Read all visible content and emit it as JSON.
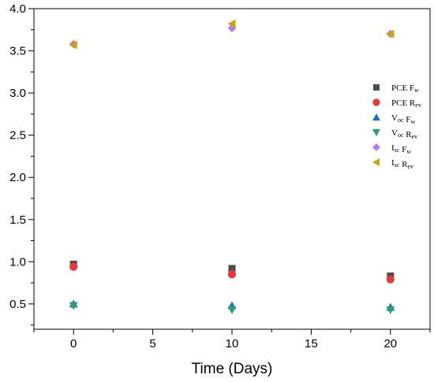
{
  "chart_data": {
    "type": "scatter",
    "title": "",
    "xlabel": "Time (Days)",
    "ylabel": "",
    "xlim": [
      -2.5,
      22.5
    ],
    "ylim": [
      0.2,
      4.0
    ],
    "x_ticks": [
      0,
      5,
      10,
      15,
      20
    ],
    "y_ticks": [
      0.5,
      1.0,
      1.5,
      2.0,
      2.5,
      3.0,
      3.5,
      4.0
    ],
    "x_tick_labels": [
      "0",
      "5",
      "10",
      "15",
      "20"
    ],
    "y_tick_labels": [
      "0.5",
      "1.0",
      "1.5",
      "2.0",
      "2.5",
      "3.0",
      "3.5",
      "4.0"
    ],
    "grid": false,
    "legend_position": "right",
    "series": [
      {
        "name": "PCE Fw",
        "label_main": "PCE F",
        "label_sub": "w",
        "marker": "square",
        "color": "#4d4d4d",
        "x": [
          0,
          10,
          20
        ],
        "y": [
          0.97,
          0.92,
          0.83
        ]
      },
      {
        "name": "PCE Rev",
        "label_main": "PCE R",
        "label_sub": "ev",
        "marker": "circle",
        "color": "#e8383d",
        "x": [
          0,
          10,
          20
        ],
        "y": [
          0.94,
          0.85,
          0.79
        ]
      },
      {
        "name": "Voc Fw",
        "label_main": "V",
        "label_sub": "oc",
        "label_rest": " F",
        "label_sub2": "w",
        "marker": "triangle-up",
        "color": "#1f6fd6",
        "x": [
          0,
          10,
          20
        ],
        "y": [
          0.5,
          0.48,
          0.46
        ]
      },
      {
        "name": "Voc Rev",
        "label_main": "V",
        "label_sub": "oc",
        "label_rest": " R",
        "label_sub2": "ev",
        "marker": "triangle-down",
        "color": "#2e9e6a",
        "x": [
          0,
          10,
          20
        ],
        "y": [
          0.48,
          0.43,
          0.43
        ]
      },
      {
        "name": "Isc Fw",
        "label_main": "I",
        "label_sub": "sc",
        "label_rest": " F",
        "label_sub2": "w",
        "marker": "diamond",
        "color": "#b57ee6",
        "x": [
          0,
          10,
          20
        ],
        "y": [
          3.58,
          3.77,
          3.7
        ]
      },
      {
        "name": "Isc Rev",
        "label_main": "I",
        "label_sub": "sc",
        "label_rest": " R",
        "label_sub2": "ev",
        "marker": "triangle-left",
        "color": "#c9a20f",
        "x": [
          0,
          10,
          20
        ],
        "y": [
          3.57,
          3.82,
          3.7
        ]
      }
    ]
  }
}
